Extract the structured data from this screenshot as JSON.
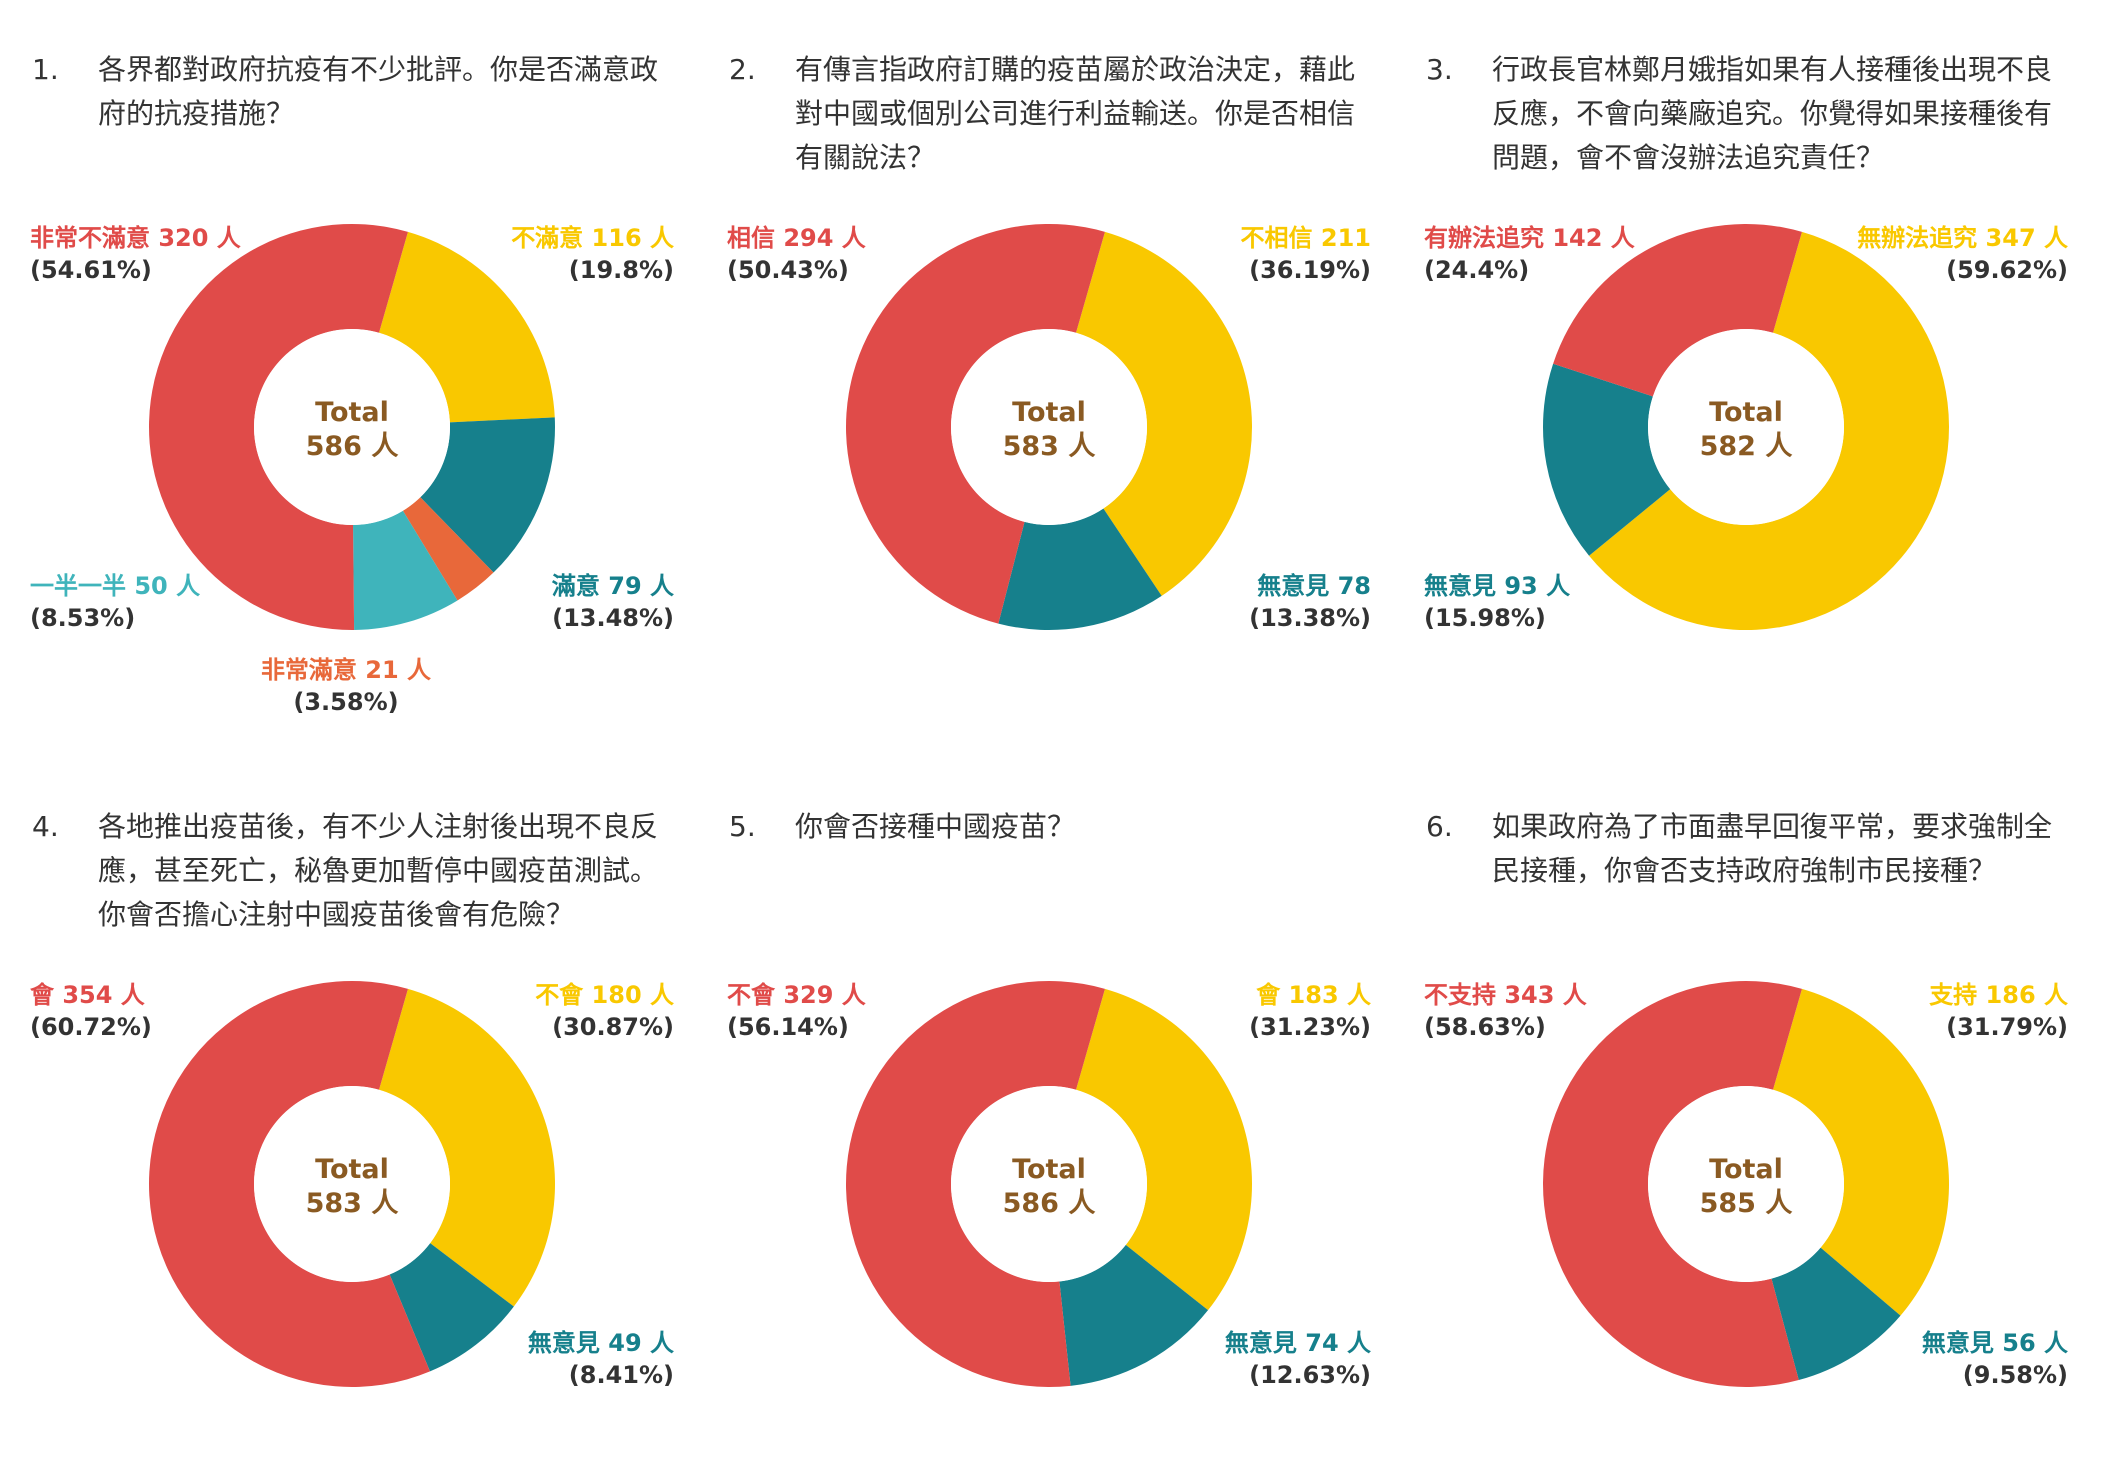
{
  "colors": {
    "red": "#e04b49",
    "yellow": "#f9c800",
    "teal": "#16808c",
    "cyan": "#3fb4bb",
    "orange": "#e8683a",
    "total_text": "#8a5a22"
  },
  "chart_data": [
    {
      "type": "pie",
      "question_number": "1.",
      "question": "各界都對政府抗疫有不少批評。你是否滿意政府的抗疫措施？",
      "total_title": "Total",
      "total_value": "586 人",
      "slices": [
        {
          "name": "非常不滿意 320 人",
          "pct": "(54.61%)",
          "value": 54.61,
          "color": "#e04b49"
        },
        {
          "name": "不滿意 116 人",
          "pct": "(19.8%)",
          "value": 19.8,
          "color": "#f9c800"
        },
        {
          "name": "滿意 79 人",
          "pct": "(13.48%)",
          "value": 13.48,
          "color": "#16808c"
        },
        {
          "name": "非常滿意 21 人",
          "pct": "(3.58%)",
          "value": 3.58,
          "color": "#e8683a"
        },
        {
          "name": "一半一半 50 人",
          "pct": "(8.53%)",
          "value": 8.53,
          "color": "#3fb4bb"
        }
      ]
    },
    {
      "type": "pie",
      "question_number": "2.",
      "question": "有傳言指政府訂購的疫苗屬於政治決定，藉此對中國或個別公司進行利益輸送。你是否相信有關說法？",
      "total_title": "Total",
      "total_value": "583 人",
      "slices": [
        {
          "name": "相信 294 人",
          "pct": "(50.43%)",
          "value": 50.43,
          "color": "#e04b49"
        },
        {
          "name": "不相信 211",
          "pct": "(36.19%)",
          "value": 36.19,
          "color": "#f9c800"
        },
        {
          "name": "無意見 78",
          "pct": "(13.38%)",
          "value": 13.38,
          "color": "#16808c"
        }
      ]
    },
    {
      "type": "pie",
      "question_number": "3.",
      "question": "行政長官林鄭月娥指如果有人接種後出現不良反應，不會向藥廠追究。你覺得如果接種後有問題，會不會沒辦法追究責任？",
      "total_title": "Total",
      "total_value": "582 人",
      "slices": [
        {
          "name": "有辦法追究 142 人",
          "pct": "(24.4%)",
          "value": 24.4,
          "color": "#e04b49"
        },
        {
          "name": "無辦法追究 347 人",
          "pct": "(59.62%)",
          "value": 59.62,
          "color": "#f9c800"
        },
        {
          "name": "無意見 93 人",
          "pct": "(15.98%)",
          "value": 15.98,
          "color": "#16808c"
        }
      ]
    },
    {
      "type": "pie",
      "question_number": "4.",
      "question": "各地推出疫苗後，有不少人注射後出現不良反應，甚至死亡，秘魯更加暫停中國疫苗測試。你會否擔心注射中國疫苗後會有危險？",
      "total_title": "Total",
      "total_value": "583 人",
      "slices": [
        {
          "name": "會 354 人",
          "pct": "(60.72%)",
          "value": 60.72,
          "color": "#e04b49"
        },
        {
          "name": "不會 180 人",
          "pct": "(30.87%)",
          "value": 30.87,
          "color": "#f9c800"
        },
        {
          "name": "無意見 49 人",
          "pct": "(8.41%)",
          "value": 8.41,
          "color": "#16808c"
        }
      ]
    },
    {
      "type": "pie",
      "question_number": "5.",
      "question": "你會否接種中國疫苗？",
      "total_title": "Total",
      "total_value": "586 人",
      "slices": [
        {
          "name": "不會 329 人",
          "pct": "(56.14%)",
          "value": 56.14,
          "color": "#e04b49"
        },
        {
          "name": "會 183 人",
          "pct": "(31.23%)",
          "value": 31.23,
          "color": "#f9c800"
        },
        {
          "name": "無意見 74 人",
          "pct": "(12.63%)",
          "value": 12.63,
          "color": "#16808c"
        }
      ]
    },
    {
      "type": "pie",
      "question_number": "6.",
      "question": "如果政府為了市面盡早回復平常，要求強制全民接種，你會否支持政府強制市民接種？",
      "total_title": "Total",
      "total_value": "585 人",
      "slices": [
        {
          "name": "不支持 343 人",
          "pct": "(58.63%)",
          "value": 58.63,
          "color": "#e04b49"
        },
        {
          "name": "支持 186 人",
          "pct": "(31.79%)",
          "value": 31.79,
          "color": "#f9c800"
        },
        {
          "name": "無意見 56 人",
          "pct": "(9.58%)",
          "value": 9.58,
          "color": "#16808c"
        }
      ]
    }
  ]
}
